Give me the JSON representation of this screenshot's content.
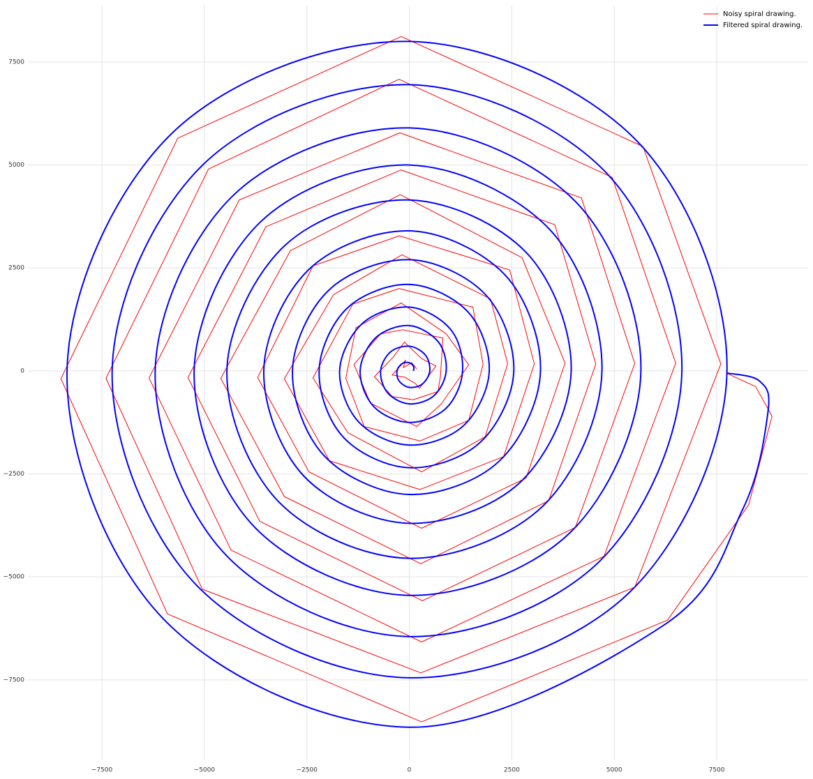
{
  "chart_data": {
    "type": "line",
    "series": [
      {
        "name": "Noisy spiral drawing.",
        "color": "#ff0000",
        "linewidth": 1,
        "x": [
          180,
          60,
          -150,
          -90,
          -420,
          -120,
          140,
          250,
          650,
          300,
          -120,
          -380,
          -850,
          -420,
          90,
          700,
          760,
          820,
          -160,
          -700,
          -1350,
          -950,
          180,
          780,
          1450,
          900,
          -200,
          -1300,
          -1550,
          -1100,
          260,
          1450,
          1800,
          1550,
          -250,
          -1380,
          -2350,
          -1500,
          300,
          1850,
          2400,
          1980,
          -180,
          -1850,
          -3050,
          -1950,
          260,
          2300,
          3050,
          2450,
          -240,
          -2350,
          -3700,
          -2450,
          300,
          2850,
          3800,
          2750,
          -220,
          -2900,
          -4600,
          -3050,
          280,
          3400,
          4550,
          3550,
          -200,
          -3500,
          -5400,
          -3650,
          320,
          4050,
          5500,
          4200,
          -230,
          -4150,
          -6350,
          -4350,
          300,
          4750,
          6500,
          4950,
          -250,
          -4900,
          -7400,
          -5050,
          280,
          5500,
          7600,
          5700,
          -200,
          -5650,
          -8500,
          -5900,
          300,
          6300,
          8280,
          8850,
          8450,
          7750
        ],
        "values": [
          50,
          200,
          80,
          260,
          -100,
          -150,
          -300,
          -420,
          120,
          300,
          700,
          350,
          -140,
          -620,
          -700,
          -500,
          -130,
          800,
          1000,
          900,
          160,
          -780,
          -1350,
          -800,
          150,
          900,
          1650,
          1050,
          -180,
          -1350,
          -1700,
          -1200,
          160,
          1550,
          2000,
          1620,
          -170,
          -1500,
          -2450,
          -1600,
          180,
          1750,
          2820,
          1850,
          -190,
          -2180,
          -2880,
          -2080,
          170,
          2450,
          3280,
          2550,
          -160,
          -2450,
          -3820,
          -2600,
          190,
          2750,
          4280,
          2920,
          -180,
          -3050,
          -4680,
          -3150,
          170,
          3550,
          4880,
          3500,
          -160,
          -3650,
          -5580,
          -3800,
          180,
          4200,
          5780,
          4150,
          -170,
          -4350,
          -6580,
          -4500,
          190,
          4700,
          7080,
          4900,
          -180,
          -5300,
          -7330,
          -5250,
          170,
          5450,
          8120,
          5650,
          -190,
          -5900,
          -8520,
          -6050,
          -3250,
          -1100,
          -380,
          -60
        ]
      },
      {
        "name": "Filtered spiral drawing.",
        "color": "#0000ff",
        "linewidth": 2,
        "smooth": true,
        "x": [
          100,
          106,
          0,
          -177,
          -300,
          -247,
          0,
          318,
          500,
          389,
          0,
          -460,
          -700,
          -530,
          0,
          601,
          900,
          707,
          0,
          -813,
          -1200,
          -866,
          0,
          902,
          1300,
          1008,
          0,
          -1149,
          -1700,
          -1237,
          0,
          1326,
          1950,
          1432,
          0,
          -1520,
          -2200,
          -1609,
          0,
          1732,
          2550,
          1856,
          0,
          -1962,
          -2850,
          -2068,
          0,
          2192,
          3200,
          2333,
          0,
          -2457,
          -3550,
          -2563,
          0,
          2705,
          3950,
          2864,
          0,
          -3041,
          -4450,
          -3182,
          0,
          3270,
          4700,
          3429,
          0,
          -3624,
          -5250,
          -3783,
          0,
          3924,
          5650,
          4083,
          0,
          -4278,
          -6200,
          -4472,
          0,
          4632,
          6650,
          4808,
          0,
          -5020,
          -7250,
          -5197,
          0,
          5374,
          7750,
          5568,
          0,
          -5780,
          -8350,
          -6010,
          0,
          6187,
          8130,
          8750,
          8550,
          7750
        ],
        "values": [
          0,
          106,
          200,
          177,
          0,
          -247,
          -400,
          -318,
          0,
          389,
          600,
          460,
          0,
          -530,
          -800,
          -601,
          0,
          707,
          1100,
          813,
          0,
          -866,
          -1250,
          -902,
          0,
          1008,
          1550,
          1149,
          0,
          -1237,
          -1800,
          -1326,
          0,
          1432,
          2100,
          1520,
          0,
          -1609,
          -2350,
          -1732,
          0,
          1856,
          2700,
          1962,
          0,
          -2068,
          -3000,
          -2192,
          0,
          2333,
          3400,
          2457,
          0,
          -2563,
          -3700,
          -2705,
          0,
          2864,
          4150,
          3041,
          0,
          -3182,
          -4550,
          -3270,
          0,
          3429,
          5000,
          3624,
          0,
          -3783,
          -5450,
          -3924,
          0,
          4083,
          5900,
          4278,
          0,
          -4472,
          -6450,
          -4632,
          0,
          4808,
          6950,
          5020,
          0,
          -5197,
          -7450,
          -5374,
          0,
          5568,
          8000,
          5780,
          0,
          -6010,
          -8650,
          -6187,
          -3368,
          -1000,
          -250,
          -50
        ]
      }
    ],
    "xlim": [
      -9305,
      9730
    ],
    "ylim": [
      -9450,
      8870
    ],
    "xticks": [
      {
        "value": -7500,
        "label": "−7500"
      },
      {
        "value": -5000,
        "label": "−5000"
      },
      {
        "value": -2500,
        "label": "−2500"
      },
      0,
      2500,
      5000,
      7500
    ],
    "yticks": [
      {
        "value": -7500,
        "label": "−7500"
      },
      {
        "value": -5000,
        "label": "−5000"
      },
      {
        "value": -2500,
        "label": "−2500"
      },
      0,
      2500,
      5000,
      7500
    ],
    "grid": true,
    "legend": "upper right"
  }
}
